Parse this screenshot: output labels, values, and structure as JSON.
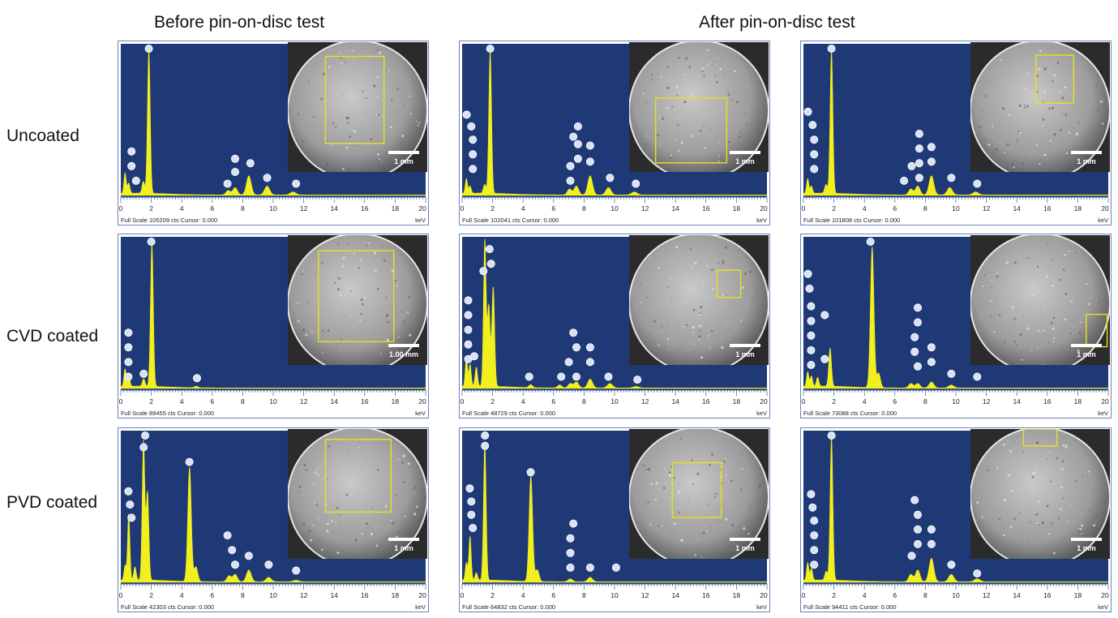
{
  "headers": {
    "before": "Before pin-on-disc test",
    "after": "After pin-on-disc test"
  },
  "row_labels": [
    "Uncoated",
    "CVD coated",
    "PVD coated"
  ],
  "colors": {
    "plot_bg": "#1f3977",
    "spectrum": "#f2ef1e",
    "roi_box": "#e8e21a",
    "marker": "#d9e2f2"
  },
  "chart_data": [
    {
      "type": "line",
      "name": "uncoated-before",
      "xlabel": "keV",
      "xlim": [
        0,
        20
      ],
      "x_ticks": [
        0,
        2,
        4,
        6,
        8,
        10,
        12,
        14,
        16,
        18,
        20
      ],
      "footer": "Full Scale 105209 cts Cursor: 0.000",
      "scale_bar": "1 mm",
      "peaks": [
        {
          "kev": 0.28,
          "rel": 0.14
        },
        {
          "kev": 0.52,
          "rel": 0.07
        },
        {
          "kev": 1.48,
          "rel": 0.08
        },
        {
          "kev": 1.84,
          "rel": 0.98
        },
        {
          "kev": 7.05,
          "rel": 0.03
        },
        {
          "kev": 7.5,
          "rel": 0.05
        },
        {
          "kev": 8.4,
          "rel": 0.13
        },
        {
          "kev": 9.6,
          "rel": 0.06
        },
        {
          "kev": 11.3,
          "rel": 0.02
        }
      ],
      "markers": [
        {
          "kev": 0.7,
          "rel": 0.3
        },
        {
          "kev": 0.7,
          "rel": 0.2
        },
        {
          "kev": 1.0,
          "rel": 0.1
        },
        {
          "kev": 1.84,
          "rel": 1.03
        },
        {
          "kev": 7.0,
          "rel": 0.08
        },
        {
          "kev": 7.5,
          "rel": 0.16
        },
        {
          "kev": 7.5,
          "rel": 0.25
        },
        {
          "kev": 8.5,
          "rel": 0.22
        },
        {
          "kev": 9.6,
          "rel": 0.12
        },
        {
          "kev": 11.5,
          "rel": 0.08
        }
      ],
      "roi": [
        0.27,
        0.11,
        0.69,
        0.78
      ]
    },
    {
      "type": "line",
      "name": "uncoated-after-1",
      "xlabel": "keV",
      "xlim": [
        0,
        20
      ],
      "x_ticks": [
        0,
        2,
        4,
        6,
        8,
        10,
        12,
        14,
        16,
        18,
        20
      ],
      "footer": "Full Scale 102041 cts Cursor: 0.000",
      "scale_bar": "1 mm",
      "peaks": [
        {
          "kev": 0.28,
          "rel": 0.1
        },
        {
          "kev": 0.52,
          "rel": 0.05
        },
        {
          "kev": 1.48,
          "rel": 0.06
        },
        {
          "kev": 1.84,
          "rel": 0.97
        },
        {
          "kev": 7.05,
          "rel": 0.04
        },
        {
          "kev": 7.5,
          "rel": 0.06
        },
        {
          "kev": 8.4,
          "rel": 0.13
        },
        {
          "kev": 9.6,
          "rel": 0.05
        },
        {
          "kev": 11.3,
          "rel": 0.02
        }
      ],
      "markers": [
        {
          "kev": 0.3,
          "rel": 0.55
        },
        {
          "kev": 0.6,
          "rel": 0.47
        },
        {
          "kev": 0.7,
          "rel": 0.38
        },
        {
          "kev": 0.7,
          "rel": 0.28
        },
        {
          "kev": 0.7,
          "rel": 0.18
        },
        {
          "kev": 1.84,
          "rel": 1.03
        },
        {
          "kev": 7.1,
          "rel": 0.2
        },
        {
          "kev": 7.1,
          "rel": 0.1
        },
        {
          "kev": 7.3,
          "rel": 0.4
        },
        {
          "kev": 7.6,
          "rel": 0.47
        },
        {
          "kev": 7.6,
          "rel": 0.35
        },
        {
          "kev": 7.6,
          "rel": 0.25
        },
        {
          "kev": 8.4,
          "rel": 0.34
        },
        {
          "kev": 8.4,
          "rel": 0.23
        },
        {
          "kev": 9.7,
          "rel": 0.12
        },
        {
          "kev": 11.4,
          "rel": 0.08
        }
      ],
      "roi": [
        0.19,
        0.43,
        0.7,
        0.93
      ]
    },
    {
      "type": "line",
      "name": "uncoated-after-2",
      "xlabel": "keV",
      "xlim": [
        0,
        20
      ],
      "x_ticks": [
        0,
        2,
        4,
        6,
        8,
        10,
        12,
        14,
        16,
        18,
        20
      ],
      "footer": "Full Scale 101808 cts Cursor: 0.000",
      "scale_bar": "1 mm",
      "peaks": [
        {
          "kev": 0.28,
          "rel": 0.1
        },
        {
          "kev": 0.52,
          "rel": 0.05
        },
        {
          "kev": 1.48,
          "rel": 0.06
        },
        {
          "kev": 1.84,
          "rel": 0.97
        },
        {
          "kev": 7.05,
          "rel": 0.04
        },
        {
          "kev": 7.5,
          "rel": 0.06
        },
        {
          "kev": 8.4,
          "rel": 0.13
        },
        {
          "kev": 9.6,
          "rel": 0.05
        },
        {
          "kev": 11.3,
          "rel": 0.02
        }
      ],
      "markers": [
        {
          "kev": 0.3,
          "rel": 0.57
        },
        {
          "kev": 0.6,
          "rel": 0.48
        },
        {
          "kev": 0.7,
          "rel": 0.38
        },
        {
          "kev": 0.7,
          "rel": 0.28
        },
        {
          "kev": 0.7,
          "rel": 0.18
        },
        {
          "kev": 1.84,
          "rel": 1.03
        },
        {
          "kev": 6.6,
          "rel": 0.1
        },
        {
          "kev": 7.1,
          "rel": 0.2
        },
        {
          "kev": 7.6,
          "rel": 0.42
        },
        {
          "kev": 7.6,
          "rel": 0.32
        },
        {
          "kev": 7.6,
          "rel": 0.22
        },
        {
          "kev": 7.6,
          "rel": 0.12
        },
        {
          "kev": 8.4,
          "rel": 0.33
        },
        {
          "kev": 8.4,
          "rel": 0.23
        },
        {
          "kev": 9.7,
          "rel": 0.12
        },
        {
          "kev": 11.4,
          "rel": 0.08
        }
      ],
      "roi": [
        0.47,
        0.1,
        0.74,
        0.47
      ]
    },
    {
      "type": "line",
      "name": "cvd-before",
      "xlabel": "keV",
      "xlim": [
        0,
        20
      ],
      "x_ticks": [
        0,
        2,
        4,
        6,
        8,
        10,
        12,
        14,
        16,
        18,
        20
      ],
      "footer": "Full Scale 89455 cts Cursor: 0.000",
      "scale_bar": "1.00 mm",
      "peaks": [
        {
          "kev": 0.28,
          "rel": 0.12
        },
        {
          "kev": 0.52,
          "rel": 0.08
        },
        {
          "kev": 1.5,
          "rel": 0.05
        },
        {
          "kev": 2.04,
          "rel": 0.98
        },
        {
          "kev": 4.95,
          "rel": 0.01
        }
      ],
      "markers": [
        {
          "kev": 0.5,
          "rel": 0.38
        },
        {
          "kev": 0.5,
          "rel": 0.28
        },
        {
          "kev": 0.5,
          "rel": 0.18
        },
        {
          "kev": 0.5,
          "rel": 0.08
        },
        {
          "kev": 1.5,
          "rel": 0.1
        },
        {
          "kev": 2.0,
          "rel": 1.02
        },
        {
          "kev": 5.0,
          "rel": 0.07
        }
      ],
      "roi": [
        0.22,
        0.12,
        0.76,
        0.82
      ]
    },
    {
      "type": "line",
      "name": "cvd-after-1",
      "xlabel": "keV",
      "xlim": [
        0,
        20
      ],
      "x_ticks": [
        0,
        2,
        4,
        6,
        8,
        10,
        12,
        14,
        16,
        18,
        20
      ],
      "footer": "Full Scale 48729 cts Cursor: 0.000",
      "scale_bar": "1 mm",
      "peaks": [
        {
          "kev": 0.28,
          "rel": 0.2
        },
        {
          "kev": 0.52,
          "rel": 0.15
        },
        {
          "kev": 0.93,
          "rel": 0.13
        },
        {
          "kev": 1.49,
          "rel": 1.0
        },
        {
          "kev": 1.75,
          "rel": 0.55
        },
        {
          "kev": 2.04,
          "rel": 0.68
        },
        {
          "kev": 4.5,
          "rel": 0.02
        },
        {
          "kev": 6.4,
          "rel": 0.02
        },
        {
          "kev": 7.1,
          "rel": 0.03
        },
        {
          "kev": 7.5,
          "rel": 0.04
        },
        {
          "kev": 8.4,
          "rel": 0.06
        },
        {
          "kev": 9.7,
          "rel": 0.03
        },
        {
          "kev": 11.4,
          "rel": 0.01
        }
      ],
      "markers": [
        {
          "kev": 0.4,
          "rel": 0.6
        },
        {
          "kev": 0.4,
          "rel": 0.5
        },
        {
          "kev": 0.4,
          "rel": 0.4
        },
        {
          "kev": 0.4,
          "rel": 0.3
        },
        {
          "kev": 0.4,
          "rel": 0.2
        },
        {
          "kev": 0.8,
          "rel": 0.22
        },
        {
          "kev": 1.4,
          "rel": 0.8
        },
        {
          "kev": 1.8,
          "rel": 0.95
        },
        {
          "kev": 1.9,
          "rel": 0.85
        },
        {
          "kev": 4.4,
          "rel": 0.08
        },
        {
          "kev": 6.5,
          "rel": 0.08
        },
        {
          "kev": 7.0,
          "rel": 0.18
        },
        {
          "kev": 7.3,
          "rel": 0.38
        },
        {
          "kev": 7.5,
          "rel": 0.28
        },
        {
          "kev": 7.5,
          "rel": 0.08
        },
        {
          "kev": 8.4,
          "rel": 0.28
        },
        {
          "kev": 8.4,
          "rel": 0.18
        },
        {
          "kev": 9.6,
          "rel": 0.08
        },
        {
          "kev": 11.5,
          "rel": 0.06
        }
      ],
      "roi": [
        0.63,
        0.27,
        0.8,
        0.48
      ]
    },
    {
      "type": "line",
      "name": "cvd-after-2",
      "xlabel": "keV",
      "xlim": [
        0,
        20
      ],
      "x_ticks": [
        0,
        2,
        4,
        6,
        8,
        10,
        12,
        14,
        16,
        18,
        20
      ],
      "footer": "Full Scale 73088 cts Cursor: 0.000",
      "scale_bar": "1 mm",
      "peaks": [
        {
          "kev": 0.28,
          "rel": 0.1
        },
        {
          "kev": 0.52,
          "rel": 0.07
        },
        {
          "kev": 0.93,
          "rel": 0.06
        },
        {
          "kev": 1.75,
          "rel": 0.26
        },
        {
          "kev": 4.51,
          "rel": 0.96
        },
        {
          "kev": 4.93,
          "rel": 0.1
        },
        {
          "kev": 7.05,
          "rel": 0.03
        },
        {
          "kev": 7.5,
          "rel": 0.03
        },
        {
          "kev": 8.4,
          "rel": 0.04
        },
        {
          "kev": 9.7,
          "rel": 0.02
        }
      ],
      "markers": [
        {
          "kev": 0.3,
          "rel": 0.78
        },
        {
          "kev": 0.4,
          "rel": 0.68
        },
        {
          "kev": 0.5,
          "rel": 0.56
        },
        {
          "kev": 0.5,
          "rel": 0.46
        },
        {
          "kev": 0.5,
          "rel": 0.36
        },
        {
          "kev": 0.5,
          "rel": 0.26
        },
        {
          "kev": 0.5,
          "rel": 0.16
        },
        {
          "kev": 1.4,
          "rel": 0.5
        },
        {
          "kev": 1.4,
          "rel": 0.2
        },
        {
          "kev": 4.4,
          "rel": 1.03
        },
        {
          "kev": 7.5,
          "rel": 0.55
        },
        {
          "kev": 7.5,
          "rel": 0.45
        },
        {
          "kev": 7.3,
          "rel": 0.35
        },
        {
          "kev": 7.3,
          "rel": 0.25
        },
        {
          "kev": 7.5,
          "rel": 0.15
        },
        {
          "kev": 8.4,
          "rel": 0.28
        },
        {
          "kev": 8.4,
          "rel": 0.18
        },
        {
          "kev": 9.7,
          "rel": 0.1
        },
        {
          "kev": 11.4,
          "rel": 0.08
        }
      ],
      "roi": [
        0.83,
        0.61,
        0.98,
        0.86
      ]
    },
    {
      "type": "line",
      "name": "pvd-before",
      "xlabel": "keV",
      "xlim": [
        0,
        20
      ],
      "x_ticks": [
        0,
        2,
        4,
        6,
        8,
        10,
        12,
        14,
        16,
        18,
        20
      ],
      "footer": "Full Scale 42303 cts Cursor: 0.000",
      "scale_bar": "1 mm",
      "peaks": [
        {
          "kev": 0.28,
          "rel": 0.1
        },
        {
          "kev": 0.52,
          "rel": 0.45
        },
        {
          "kev": 0.93,
          "rel": 0.09
        },
        {
          "kev": 1.49,
          "rel": 0.95
        },
        {
          "kev": 1.75,
          "rel": 0.6
        },
        {
          "kev": 4.51,
          "rel": 0.78
        },
        {
          "kev": 4.93,
          "rel": 0.1
        },
        {
          "kev": 7.1,
          "rel": 0.04
        },
        {
          "kev": 7.5,
          "rel": 0.05
        },
        {
          "kev": 8.4,
          "rel": 0.08
        },
        {
          "kev": 9.7,
          "rel": 0.03
        },
        {
          "kev": 11.5,
          "rel": 0.01
        }
      ],
      "markers": [
        {
          "kev": 0.5,
          "rel": 0.62
        },
        {
          "kev": 0.6,
          "rel": 0.53
        },
        {
          "kev": 0.7,
          "rel": 0.44
        },
        {
          "kev": 1.6,
          "rel": 1.03
        },
        {
          "kev": 1.5,
          "rel": 0.92
        },
        {
          "kev": 4.5,
          "rel": 0.82
        },
        {
          "kev": 7.0,
          "rel": 0.32
        },
        {
          "kev": 7.3,
          "rel": 0.22
        },
        {
          "kev": 7.5,
          "rel": 0.12
        },
        {
          "kev": 8.4,
          "rel": 0.18
        },
        {
          "kev": 9.7,
          "rel": 0.12
        },
        {
          "kev": 11.5,
          "rel": 0.08
        }
      ],
      "roi": [
        0.27,
        0.08,
        0.74,
        0.64
      ]
    },
    {
      "type": "line",
      "name": "pvd-after-1",
      "xlabel": "keV",
      "xlim": [
        0,
        20
      ],
      "x_ticks": [
        0,
        2,
        4,
        6,
        8,
        10,
        12,
        14,
        16,
        18,
        20
      ],
      "footer": "Full Scale 64832 cts Cursor: 0.000",
      "scale_bar": "1 mm",
      "peaks": [
        {
          "kev": 0.28,
          "rel": 0.12
        },
        {
          "kev": 0.52,
          "rel": 0.3
        },
        {
          "kev": 0.93,
          "rel": 0.05
        },
        {
          "kev": 1.49,
          "rel": 0.93
        },
        {
          "kev": 4.51,
          "rel": 0.72
        },
        {
          "kev": 4.93,
          "rel": 0.08
        },
        {
          "kev": 7.1,
          "rel": 0.02
        },
        {
          "kev": 8.4,
          "rel": 0.03
        }
      ],
      "markers": [
        {
          "kev": 0.5,
          "rel": 0.64
        },
        {
          "kev": 0.6,
          "rel": 0.55
        },
        {
          "kev": 0.6,
          "rel": 0.46
        },
        {
          "kev": 0.7,
          "rel": 0.37
        },
        {
          "kev": 1.5,
          "rel": 1.03
        },
        {
          "kev": 1.5,
          "rel": 0.93
        },
        {
          "kev": 4.5,
          "rel": 0.75
        },
        {
          "kev": 7.3,
          "rel": 0.4
        },
        {
          "kev": 7.1,
          "rel": 0.3
        },
        {
          "kev": 7.1,
          "rel": 0.2
        },
        {
          "kev": 7.1,
          "rel": 0.1
        },
        {
          "kev": 8.4,
          "rel": 0.1
        },
        {
          "kev": 10.1,
          "rel": 0.1
        }
      ],
      "roi": [
        0.31,
        0.26,
        0.66,
        0.68
      ]
    },
    {
      "type": "line",
      "name": "pvd-after-2",
      "xlabel": "keV",
      "xlim": [
        0,
        20
      ],
      "x_ticks": [
        0,
        2,
        4,
        6,
        8,
        10,
        12,
        14,
        16,
        18,
        20
      ],
      "footer": "Full Scale 94411 cts Cursor: 0.000",
      "scale_bar": "1 mm",
      "peaks": [
        {
          "kev": 0.28,
          "rel": 0.12
        },
        {
          "kev": 0.52,
          "rel": 0.08
        },
        {
          "kev": 1.49,
          "rel": 0.06
        },
        {
          "kev": 1.84,
          "rel": 0.97
        },
        {
          "kev": 7.05,
          "rel": 0.05
        },
        {
          "kev": 7.5,
          "rel": 0.08
        },
        {
          "kev": 8.4,
          "rel": 0.16
        },
        {
          "kev": 9.7,
          "rel": 0.05
        },
        {
          "kev": 11.4,
          "rel": 0.02
        }
      ],
      "markers": [
        {
          "kev": 0.5,
          "rel": 0.6
        },
        {
          "kev": 0.6,
          "rel": 0.51
        },
        {
          "kev": 0.7,
          "rel": 0.42
        },
        {
          "kev": 0.7,
          "rel": 0.32
        },
        {
          "kev": 0.7,
          "rel": 0.22
        },
        {
          "kev": 0.7,
          "rel": 0.12
        },
        {
          "kev": 1.84,
          "rel": 1.03
        },
        {
          "kev": 7.1,
          "rel": 0.18
        },
        {
          "kev": 7.3,
          "rel": 0.56
        },
        {
          "kev": 7.5,
          "rel": 0.46
        },
        {
          "kev": 7.5,
          "rel": 0.36
        },
        {
          "kev": 7.5,
          "rel": 0.26
        },
        {
          "kev": 8.4,
          "rel": 0.36
        },
        {
          "kev": 8.4,
          "rel": 0.26
        },
        {
          "kev": 9.7,
          "rel": 0.12
        },
        {
          "kev": 11.4,
          "rel": 0.06
        }
      ],
      "roi": [
        0.38,
        0.0,
        0.62,
        0.13
      ]
    }
  ]
}
